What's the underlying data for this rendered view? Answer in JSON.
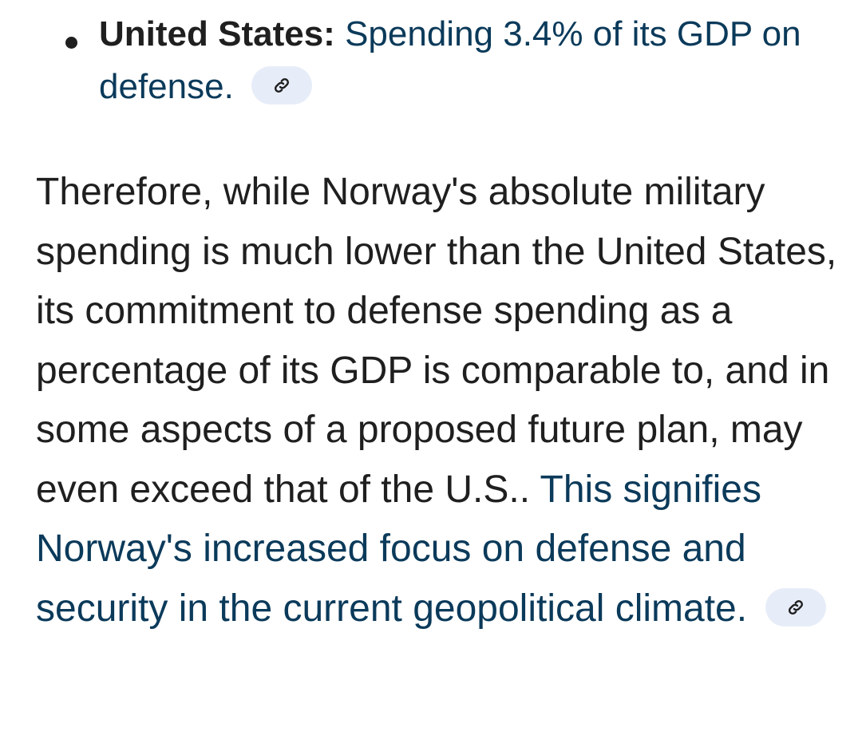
{
  "bullet": {
    "label": "United States:",
    "text": "Spending 3.4% of its GDP on defense.",
    "link_icon": "link-icon"
  },
  "paragraph": {
    "plain": "Therefore, while Norway's absolute military spending is much lower than the United States, its commitment to defense spending as a percentage of its GDP is comparable to, and in some aspects of a proposed future plan, may even exceed that of the U.S..",
    "highlighted": "This signifies Norway's increased focus on defense and security in the current geopolitical climate.",
    "link_icon": "link-icon"
  },
  "colors": {
    "text": "#1f1f1f",
    "highlight_text": "#0b3a5a",
    "chip_background": "#e7edf8"
  }
}
